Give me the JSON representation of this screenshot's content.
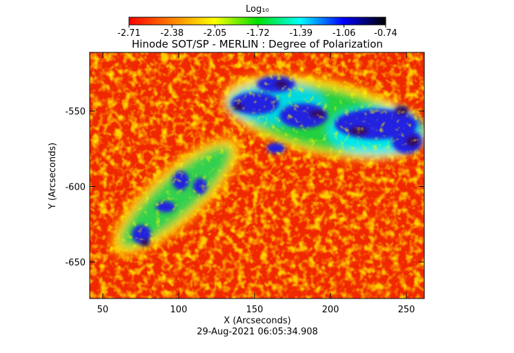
{
  "chart_data": {
    "type": "image",
    "title": "Hinode SOT/SP - MERLIN : Degree of Polarization",
    "xlabel": "X (Arcseconds)",
    "ylabel": "Y (Arcseconds)",
    "footer": "29-Aug-2021 06:05:34.908",
    "xlim": [
      41.4,
      261.8
    ],
    "xticks": [
      50,
      100,
      150,
      200,
      250
    ],
    "ylim": [
      -674.2,
      -511.2
    ],
    "yticks": [
      -550,
      -600,
      -650
    ],
    "colorbar": {
      "label": "Log₁₀",
      "lim": [
        -2.71,
        -0.74
      ],
      "ticks": [
        -2.71,
        -2.38,
        -2.05,
        -1.72,
        -1.39,
        -1.06,
        -0.74
      ],
      "colormap": [
        "#ff0000",
        "#ff8000",
        "#ffff00",
        "#00e000",
        "#00ffff",
        "#0000ff",
        "#000000"
      ]
    }
  }
}
